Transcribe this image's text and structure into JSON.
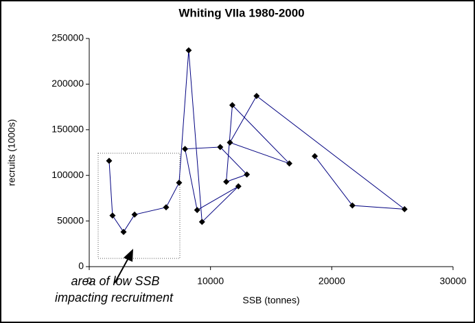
{
  "chart_data": {
    "type": "line",
    "title": "Whiting VIIa  1980-2000",
    "x_label": "SSB (tonnes)",
    "y_label": "recruits (1000s)",
    "annotation": [
      "area of low SSB",
      "impacting recruitment"
    ],
    "x": [
      1640,
      1920,
      2830,
      3740,
      6340,
      7410,
      8200,
      9300,
      12300,
      8900,
      7900,
      10800,
      13000,
      11300,
      11800,
      16500,
      11600,
      13800,
      26000,
      21700,
      18600
    ],
    "series": [
      {
        "name": "recruits",
        "color": "#000080",
        "marker_color": "#000000",
        "values": [
          116000,
          56000,
          38000,
          57000,
          65000,
          92000,
          237000,
          49000,
          88000,
          62000,
          129000,
          131000,
          101000,
          93000,
          177000,
          113000,
          136000,
          187000,
          63000,
          67000,
          121000
        ]
      }
    ],
    "xlim": [
      0,
      30000
    ],
    "xticks": [
      0,
      10000,
      20000,
      30000
    ],
    "ylim": [
      0,
      250000
    ],
    "yticks": [
      0,
      50000,
      100000,
      150000,
      200000,
      250000
    ],
    "grid": false
  }
}
